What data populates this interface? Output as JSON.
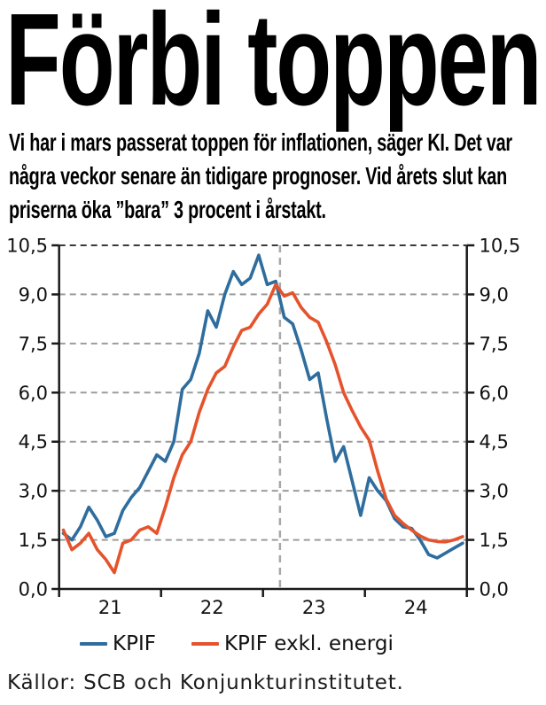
{
  "header": {
    "title": "Förbi toppen",
    "subtitle_lines": [
      "Vi har i mars passerat toppen för inflationen, säger KI. Det var",
      "några veckor senare än tidigare prognoser. Vid årets slut kan",
      "priserna öka ”bara” 3 procent i årstakt."
    ]
  },
  "chart_data": {
    "type": "line",
    "title": "",
    "xlabel": "",
    "ylabel": "",
    "x_unit": "month",
    "x_range_label": "2021 till 2024, månadsvärden",
    "x_tick_labels": [
      "21",
      "22",
      "23",
      "24"
    ],
    "ylim": [
      0,
      10.5
    ],
    "ytick_values": [
      0,
      1.5,
      3.0,
      4.5,
      6.0,
      7.5,
      9.0,
      10.5
    ],
    "ytick_labels": [
      "0,0",
      "1,5",
      "3,0",
      "4,5",
      "6,0",
      "7,5",
      "9,0",
      "10,5"
    ],
    "grid": "horizontal dashed, labels on both sides",
    "forecast_divider": {
      "style": "vertical dashed gray line",
      "month_index": 25.5,
      "note_position": "between Feb-23 and Mar-23"
    },
    "series": [
      {
        "name": "KPIF",
        "color": "#2e6d9d",
        "values": [
          1.7,
          1.5,
          1.9,
          2.5,
          2.1,
          1.6,
          1.7,
          2.4,
          2.8,
          3.1,
          3.6,
          4.1,
          3.9,
          4.5,
          6.1,
          6.4,
          7.2,
          8.5,
          8.0,
          9.0,
          9.7,
          9.3,
          9.5,
          10.2,
          9.3,
          9.4,
          8.3,
          8.1,
          7.3,
          6.4,
          6.6,
          5.2,
          3.9,
          4.35,
          3.3,
          2.25,
          3.4,
          3.0,
          2.7,
          2.15,
          1.9,
          1.85,
          1.5,
          1.05,
          0.95,
          1.1,
          1.25,
          1.4
        ]
      },
      {
        "name": "KPIF exkl. energi",
        "color": "#e5532c",
        "values": [
          1.8,
          1.2,
          1.4,
          1.7,
          1.2,
          0.9,
          0.5,
          1.4,
          1.5,
          1.8,
          1.9,
          1.7,
          2.5,
          3.4,
          4.1,
          4.5,
          5.4,
          6.1,
          6.6,
          6.8,
          7.4,
          7.9,
          8.0,
          8.4,
          8.7,
          9.3,
          8.95,
          9.05,
          8.6,
          8.3,
          8.15,
          7.55,
          6.85,
          6.0,
          5.45,
          4.95,
          4.55,
          3.6,
          2.75,
          2.25,
          2.0,
          1.8,
          1.62,
          1.5,
          1.45,
          1.44,
          1.5,
          1.6
        ]
      }
    ],
    "legend_position": "below chart"
  },
  "source": {
    "text": "Källor: SCB och Konjunkturinstitutet."
  },
  "colors": {
    "kpif_blue": "#2e6d9d",
    "kpif_excl_energy_orange": "#e5532c",
    "gridline_gray": "#9c9c9c",
    "top_gridline_dark": "#3a3a3a",
    "divider_gray": "#a8a8a8",
    "axis_black": "#1a1a1a"
  }
}
